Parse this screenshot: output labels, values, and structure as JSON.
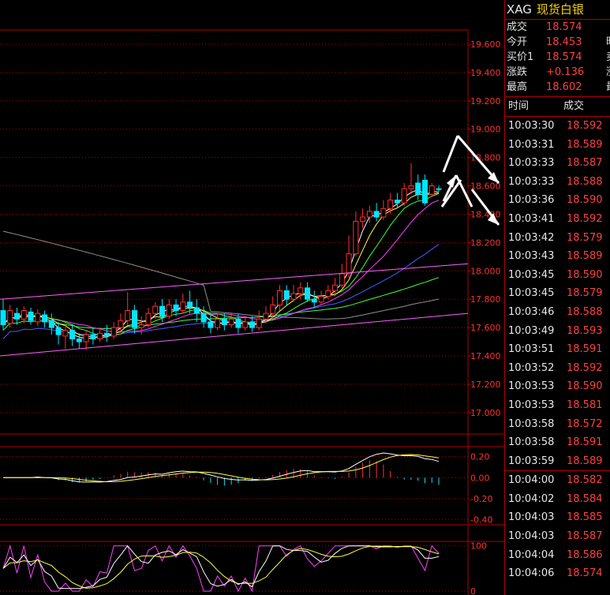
{
  "header": {
    "symbol": "XAG",
    "name": "现货白银"
  },
  "quote": [
    {
      "label": "成交",
      "value": "18.574",
      "extra": ""
    },
    {
      "label": "今开",
      "value": "18.453",
      "extra": "昨"
    },
    {
      "label": "买价1",
      "value": "18.574",
      "extra": "卖"
    },
    {
      "label": "涨跌",
      "value": "+0.136",
      "extra": "涨"
    },
    {
      "label": "最高",
      "value": "18.602",
      "extra": "最"
    }
  ],
  "ticks_header": {
    "time": "时间",
    "price": "成交"
  },
  "ticks": [
    {
      "time": "10:03:30",
      "price": "18.592"
    },
    {
      "time": "10:03:31",
      "price": "18.589"
    },
    {
      "time": "10:03:33",
      "price": "18.587"
    },
    {
      "time": "10:03:33",
      "price": "18.588"
    },
    {
      "time": "10:03:36",
      "price": "18.590"
    },
    {
      "time": "10:03:41",
      "price": "18.592"
    },
    {
      "time": "10:03:42",
      "price": "18.579"
    },
    {
      "time": "10:03:43",
      "price": "18.589"
    },
    {
      "time": "10:03:45",
      "price": "18.590"
    },
    {
      "time": "10:03:45",
      "price": "18.579"
    },
    {
      "time": "10:03:46",
      "price": "18.588"
    },
    {
      "time": "10:03:49",
      "price": "18.593"
    },
    {
      "time": "10:03:51",
      "price": "18.591"
    },
    {
      "time": "10:03:52",
      "price": "18.592"
    },
    {
      "time": "10:03:53",
      "price": "18.590"
    },
    {
      "time": "10:03:53",
      "price": "18.581"
    },
    {
      "time": "10:03:58",
      "price": "18.572"
    },
    {
      "time": "10:03:58",
      "price": "18.591"
    },
    {
      "time": "10:03:59",
      "price": "18.589"
    },
    {
      "time": "10:04:00",
      "price": "18.582"
    },
    {
      "time": "10:04:02",
      "price": "18.584"
    },
    {
      "time": "10:04:03",
      "price": "18.585"
    },
    {
      "time": "10:04:03",
      "price": "18.587"
    },
    {
      "time": "10:04:04",
      "price": "18.586"
    },
    {
      "time": "10:04:06",
      "price": "18.574"
    }
  ],
  "colors": {
    "up": "#ff3030",
    "down": "#00e5ff",
    "grid": "#b00000",
    "axis_text": "#ff3030",
    "ma_white": "#ffffff",
    "ma_yellow": "#ffff40",
    "ma_magenta": "#ff40ff",
    "ma_green": "#40ff40",
    "ma_blue": "#4060ff",
    "ma_gray": "#909090",
    "channel": "#ff60ff"
  },
  "chart_data": [
    {
      "type": "candlestick",
      "yticks": [
        "19.600",
        "19.400",
        "19.200",
        "19.000",
        "18.800",
        "18.600",
        "18.400",
        "18.200",
        "18.000",
        "17.800",
        "17.600",
        "17.400",
        "17.200",
        "17.000"
      ],
      "ylim": [
        16.86,
        19.7
      ],
      "candles": [
        [
          17.72,
          17.62,
          17.8,
          17.58
        ],
        [
          17.63,
          17.72,
          17.76,
          17.6
        ],
        [
          17.7,
          17.66,
          17.74,
          17.62
        ],
        [
          17.66,
          17.72,
          17.75,
          17.63
        ],
        [
          17.71,
          17.65,
          17.74,
          17.62
        ],
        [
          17.64,
          17.7,
          17.73,
          17.61
        ],
        [
          17.69,
          17.64,
          17.72,
          17.6
        ],
        [
          17.65,
          17.6,
          17.7,
          17.55
        ],
        [
          17.6,
          17.55,
          17.64,
          17.48
        ],
        [
          17.54,
          17.58,
          17.62,
          17.45
        ],
        [
          17.58,
          17.52,
          17.62,
          17.47
        ],
        [
          17.52,
          17.5,
          17.56,
          17.45
        ],
        [
          17.5,
          17.55,
          17.58,
          17.44
        ],
        [
          17.55,
          17.52,
          17.6,
          17.48
        ],
        [
          17.52,
          17.56,
          17.6,
          17.5
        ],
        [
          17.56,
          17.54,
          17.62,
          17.5
        ],
        [
          17.54,
          17.6,
          17.64,
          17.52
        ],
        [
          17.6,
          17.65,
          17.7,
          17.57
        ],
        [
          17.65,
          17.72,
          17.85,
          17.62
        ],
        [
          17.72,
          17.6,
          17.76,
          17.56
        ],
        [
          17.6,
          17.62,
          17.68,
          17.55
        ],
        [
          17.62,
          17.7,
          17.74,
          17.6
        ],
        [
          17.7,
          17.75,
          17.78,
          17.66
        ],
        [
          17.75,
          17.68,
          17.8,
          17.64
        ],
        [
          17.68,
          17.76,
          17.8,
          17.66
        ],
        [
          17.76,
          17.72,
          17.8,
          17.68
        ],
        [
          17.72,
          17.78,
          17.84,
          17.7
        ],
        [
          17.78,
          17.74,
          17.86,
          17.7
        ],
        [
          17.74,
          17.7,
          17.8,
          17.64
        ],
        [
          17.7,
          17.64,
          17.75,
          17.6
        ],
        [
          17.64,
          17.6,
          17.7,
          17.56
        ],
        [
          17.6,
          17.66,
          17.7,
          17.58
        ],
        [
          17.66,
          17.62,
          17.7,
          17.58
        ],
        [
          17.62,
          17.66,
          17.7,
          17.6
        ],
        [
          17.66,
          17.6,
          17.7,
          17.56
        ],
        [
          17.6,
          17.64,
          17.68,
          17.58
        ],
        [
          17.64,
          17.6,
          17.68,
          17.57
        ],
        [
          17.6,
          17.66,
          17.72,
          17.58
        ],
        [
          17.66,
          17.7,
          17.75,
          17.63
        ],
        [
          17.7,
          17.76,
          17.82,
          17.66
        ],
        [
          17.76,
          17.86,
          17.9,
          17.72
        ],
        [
          17.86,
          17.8,
          17.9,
          17.76
        ],
        [
          17.8,
          17.84,
          17.9,
          17.78
        ],
        [
          17.84,
          17.88,
          17.92,
          17.8
        ],
        [
          17.88,
          17.8,
          17.92,
          17.78
        ],
        [
          17.8,
          17.78,
          17.86,
          17.74
        ],
        [
          17.78,
          17.82,
          17.86,
          17.76
        ],
        [
          17.82,
          17.86,
          17.9,
          17.8
        ],
        [
          17.86,
          17.9,
          17.95,
          17.82
        ],
        [
          17.9,
          17.98,
          18.05,
          17.88
        ],
        [
          17.98,
          18.12,
          18.25,
          17.95
        ],
        [
          18.12,
          18.35,
          18.42,
          18.1
        ],
        [
          18.35,
          18.38,
          18.44,
          18.3
        ],
        [
          18.38,
          18.42,
          18.46,
          18.34
        ],
        [
          18.42,
          18.38,
          18.48,
          18.35
        ],
        [
          18.38,
          18.44,
          18.5,
          18.36
        ],
        [
          18.44,
          18.5,
          18.55,
          18.4
        ],
        [
          18.5,
          18.48,
          18.55,
          18.44
        ],
        [
          18.48,
          18.58,
          18.62,
          18.46
        ],
        [
          18.58,
          18.6,
          18.76,
          18.54
        ],
        [
          18.62,
          18.54,
          18.68,
          18.5
        ],
        [
          18.64,
          18.48,
          18.68,
          18.46
        ],
        [
          18.54,
          18.6,
          18.62,
          18.52
        ],
        [
          18.58,
          18.574,
          18.602,
          18.56
        ]
      ]
    },
    {
      "type": "bar",
      "yticks": [
        "0.20",
        "0.00",
        "-0.20",
        "-0.40"
      ],
      "ylim": [
        -0.44,
        0.28
      ]
    },
    {
      "type": "line",
      "yticks": [
        "100",
        "0"
      ],
      "ylim": [
        -5,
        110
      ]
    }
  ]
}
